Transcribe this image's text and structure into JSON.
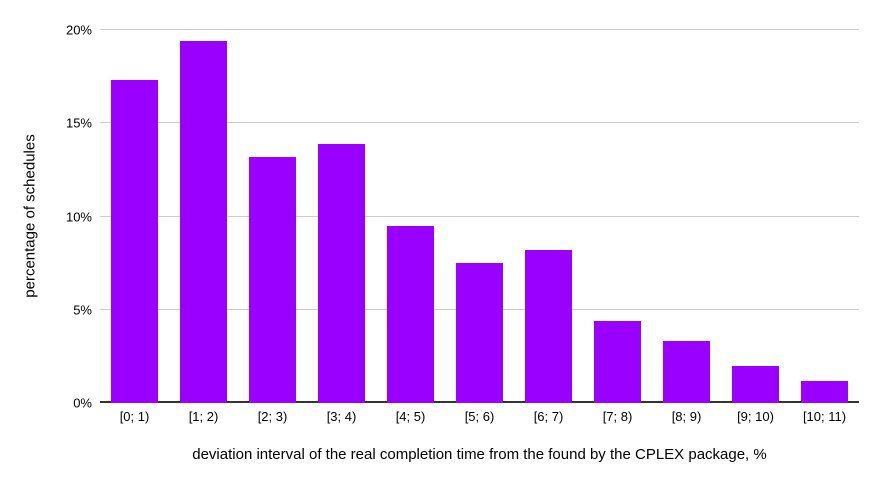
{
  "chart_data": {
    "type": "bar",
    "title": "",
    "categories": [
      "[0; 1)",
      "[1; 2)",
      "[2; 3)",
      "[3; 4)",
      "[4; 5)",
      "[5; 6)",
      "[6; 7)",
      "[7; 8)",
      "[8; 9)",
      "[9; 10)",
      "[10; 11)"
    ],
    "values": [
      17.3,
      19.4,
      13.2,
      13.9,
      9.5,
      7.5,
      8.2,
      4.4,
      3.3,
      2.0,
      1.2
    ],
    "xlabel": "deviation interval of the real completion time from the found by the CPLEX package, %",
    "ylabel": "percentage of schedules",
    "ylim": [
      0,
      20
    ],
    "yticks": [
      0,
      5,
      10,
      15,
      20
    ],
    "ytick_labels": [
      "0%",
      "5%",
      "10%",
      "15%",
      "20%"
    ],
    "grid": true,
    "legend_position": "none",
    "colors": {
      "bar": "#9900ff",
      "gridline": "#cccccc",
      "axis_baseline": "#333333",
      "text": "#000000",
      "background": "#ffffff"
    }
  }
}
